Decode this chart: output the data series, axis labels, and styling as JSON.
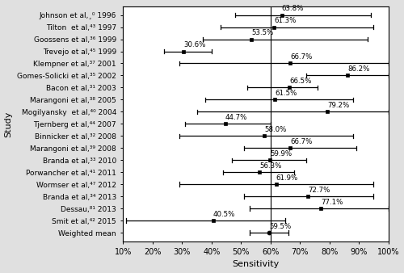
{
  "studies": [
    {
      "name": "Johnson et al,80 1996",
      "sens": 63.8,
      "ci_lo": 48.0,
      "ci_hi": 94.0,
      "is_mean": false
    },
    {
      "name": "Tilton  et al,43 1997",
      "sens": 61.3,
      "ci_lo": 43.0,
      "ci_hi": 95.0,
      "is_mean": false
    },
    {
      "name": "Goossens et al,36 1999",
      "sens": 53.5,
      "ci_lo": 37.0,
      "ci_hi": 93.0,
      "is_mean": false
    },
    {
      "name": "Trevejo et al,45 1999",
      "sens": 30.6,
      "ci_lo": 24.0,
      "ci_hi": 40.0,
      "is_mean": false
    },
    {
      "name": "Klempner et al,37 2001",
      "sens": 66.7,
      "ci_lo": 29.0,
      "ci_hi": 100.0,
      "is_mean": false
    },
    {
      "name": "Gomes-Solicki et al,35 2002",
      "sens": 86.2,
      "ci_lo": 72.0,
      "ci_hi": 100.0,
      "is_mean": false
    },
    {
      "name": "Bacon et al,31 2003",
      "sens": 66.5,
      "ci_lo": 52.0,
      "ci_hi": 76.0,
      "is_mean": false
    },
    {
      "name": "Marangoni et al,38 2005",
      "sens": 61.5,
      "ci_lo": 38.0,
      "ci_hi": 88.0,
      "is_mean": false
    },
    {
      "name": "Mogilyansky  et al,40 2004",
      "sens": 79.2,
      "ci_lo": 35.0,
      "ci_hi": 100.0,
      "is_mean": false
    },
    {
      "name": "Tjernberg et al,44 2007",
      "sens": 44.7,
      "ci_lo": 31.0,
      "ci_hi": 60.0,
      "is_mean": false
    },
    {
      "name": "Binnicker et al,32 2008",
      "sens": 58.0,
      "ci_lo": 29.0,
      "ci_hi": 88.0,
      "is_mean": false
    },
    {
      "name": "Marangoni et al,39 2008",
      "sens": 66.7,
      "ci_lo": 51.0,
      "ci_hi": 89.0,
      "is_mean": false
    },
    {
      "name": "Branda et al,33 2010",
      "sens": 59.9,
      "ci_lo": 47.0,
      "ci_hi": 72.0,
      "is_mean": false
    },
    {
      "name": "Porwancher et al,41 2011",
      "sens": 56.3,
      "ci_lo": 44.0,
      "ci_hi": 68.0,
      "is_mean": false
    },
    {
      "name": "Wormser et al,47 2012",
      "sens": 61.9,
      "ci_lo": 29.0,
      "ci_hi": 95.0,
      "is_mean": false
    },
    {
      "name": "Branda et al,34 2013",
      "sens": 72.7,
      "ci_lo": 51.0,
      "ci_hi": 95.0,
      "is_mean": false
    },
    {
      "name": "Dessau,81 2013",
      "sens": 77.1,
      "ci_lo": 53.0,
      "ci_hi": 100.0,
      "is_mean": false
    },
    {
      "name": "Smit et al,42 2015",
      "sens": 40.5,
      "ci_lo": 11.0,
      "ci_hi": 65.0,
      "is_mean": false
    },
    {
      "name": "Weighted mean",
      "sens": 59.5,
      "ci_lo": 53.0,
      "ci_hi": 66.0,
      "is_mean": true
    }
  ],
  "xlim": [
    10,
    100
  ],
  "xticks": [
    10,
    20,
    30,
    40,
    50,
    60,
    70,
    80,
    90,
    100
  ],
  "xlabel": "Sensitivity",
  "ylabel": "Study",
  "bg_color": "#e0e0e0",
  "plot_bg": "#ffffff",
  "line_color": "black",
  "text_color": "black",
  "fontsize_labels": 6.5,
  "fontsize_tick": 7,
  "fontsize_annot": 6.2,
  "vline_x": 60
}
